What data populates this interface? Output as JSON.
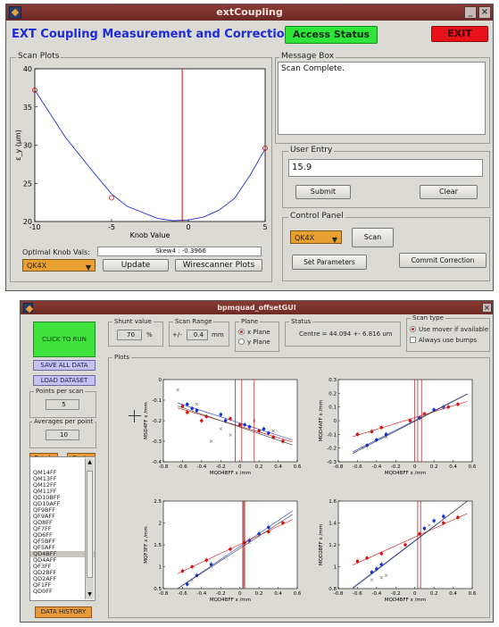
{
  "window1": {
    "title": "extCoupling",
    "header": "EXT Coupling Measurement and Correction",
    "access_status_label": "Access Status",
    "exit_label": "EXIT",
    "scan_plots_label": "Scan Plots",
    "message_box_label": "Message Box",
    "message_text": "Scan Complete.",
    "user_entry_label": "User Entry",
    "user_entry_value": "15.9",
    "submit_label": "Submit",
    "clear_label": "Clear",
    "control_panel_label": "Control Panel",
    "control_select_value": "QK4X",
    "scan_label": "Scan",
    "set_parameters_label": "Set Parameters",
    "commit_correction_label": "Commit Correction",
    "optimal_knob_label": "Optimal Knob Vals:",
    "optimal_knob_value": "Skew4 : -0.3966",
    "plot_select_value": "QK4X",
    "update_label": "Update",
    "wirescanner_label": "Wirescanner Plots",
    "colors": {
      "title_blue": "#1e2bd8",
      "access_green": "#2ee63a",
      "exit_red": "#e8121a",
      "select_orange": "#e8a030"
    }
  },
  "window2": {
    "title": "bpmquad_offsetGUI",
    "click_to_run": "CLICK TO RUN",
    "save_all_data": "SAVE ALL DATA",
    "load_dataset": "LOAD DATASET",
    "points_per_scan_label": "Points per scan",
    "points_per_scan_value": "5",
    "averages_label": "Averages per point",
    "averages_value": "10",
    "quads_label": "Quads",
    "sexts_label": "Sexts",
    "list_items": [
      "QM14FF",
      "QM13FF",
      "QM12FF",
      "QM11FF",
      "QD10BFF",
      "QD10AFF",
      "QF9BFF",
      "QF9AFF",
      "QD8FF",
      "QF7FF",
      "QD6FF",
      "QF5BFF",
      "QF5AFF",
      "QD4BFF",
      "QD4AFF",
      "QF3FF",
      "QD2BFF",
      "QD2AFF",
      "QF1FF",
      "QD0FF"
    ],
    "list_selected": "QD4BFF",
    "data_history": "DATA HISTORY",
    "shunt_label": "Shunt value",
    "shunt_value": "70",
    "shunt_unit": "%",
    "scan_range_label": "Scan Range",
    "scan_range_prefix": "+/-",
    "scan_range_value": "0.4",
    "scan_range_unit": "mm",
    "plane_label": "Plane",
    "plane_x": "x Plane",
    "plane_y": "y Plane",
    "status_label": "Status",
    "status_text": "Centre = 44.094 +- 6.816 um",
    "scan_type_label": "Scan type",
    "scan_type_mover": "Use mover if available",
    "scan_type_bumps": "Always use bumps",
    "plots_label": "Plots",
    "colors": {
      "run_green": "#3ee23a",
      "lavender": "#c6c2f0",
      "orange_btn": "#e89a3a"
    }
  },
  "chart_data": [
    {
      "type": "line",
      "title": "",
      "xlabel": "Knob Value",
      "ylabel": "ε_y (μm)",
      "xlim": [
        -10,
        5
      ],
      "ylim": [
        20,
        40
      ],
      "xticks": [
        -10,
        -5,
        0,
        5
      ],
      "yticks": [
        20,
        25,
        30,
        35,
        40
      ],
      "series": [
        {
          "style": "blue-curve",
          "x": [
            -10,
            -8,
            -6,
            -5,
            -4,
            -2,
            -1,
            0,
            1,
            2,
            3,
            4,
            5
          ],
          "y": [
            37.2,
            31.0,
            26.0,
            23.6,
            22.0,
            20.4,
            20.1,
            20.2,
            20.6,
            21.5,
            23.0,
            26.0,
            29.5
          ]
        },
        {
          "style": "red-circles",
          "x": [
            -10,
            -5,
            5
          ],
          "y": [
            37.2,
            23.1,
            29.6
          ]
        }
      ],
      "vline_x": -0.4
    },
    {
      "type": "scatter",
      "xlabel": "MQD4BFF x /mm",
      "ylabel": "MSD4FF x /mm",
      "xlim": [
        -0.8,
        0.6
      ],
      "ylim": [
        -0.4,
        0
      ],
      "xticks": [
        "-0.8",
        "-0.6",
        "-0.4",
        "-0.2",
        "0",
        "0.2",
        "0.4",
        "0.6"
      ],
      "yticks": [
        "0",
        "-0.1",
        "-0.2",
        "-0.3",
        "-0.4"
      ],
      "series": [
        {
          "style": "blue",
          "x": [
            -0.55,
            -0.5,
            -0.45,
            -0.2,
            -0.15,
            0.05,
            0.1,
            0.25,
            0.3
          ],
          "y": [
            -0.12,
            -0.14,
            -0.15,
            -0.17,
            -0.2,
            -0.22,
            -0.23,
            -0.24,
            -0.26
          ]
        },
        {
          "style": "red",
          "x": [
            -0.6,
            -0.55,
            -0.4,
            -0.35,
            -0.1,
            0.0,
            0.2,
            0.35,
            0.45
          ],
          "y": [
            -0.13,
            -0.16,
            -0.2,
            -0.18,
            -0.19,
            -0.22,
            -0.25,
            -0.28,
            -0.3
          ]
        },
        {
          "style": "grey",
          "x": [
            -0.65,
            -0.45,
            -0.3,
            -0.2,
            -0.1,
            0.15,
            0.35
          ],
          "y": [
            -0.05,
            -0.12,
            -0.3,
            -0.24,
            -0.27,
            -0.2,
            -0.25
          ]
        }
      ],
      "vlines_x": [
        -0.05,
        0.02,
        0.15
      ]
    },
    {
      "type": "scatter",
      "xlabel": "MQD4BFF x /mm",
      "ylabel": "MQD4AFF x /mm",
      "xlim": [
        -0.8,
        0.6
      ],
      "ylim": [
        -0.3,
        0.3
      ],
      "xticks": [
        "-0.8",
        "-0.6",
        "-0.4",
        "-0.2",
        "0",
        "0.2",
        "0.4",
        "0.6"
      ],
      "yticks": [
        "0.3",
        "0.2",
        "0.1",
        "0",
        "-0.1",
        "-0.2",
        "-0.3"
      ],
      "series": [
        {
          "style": "blue",
          "x": [
            -0.5,
            -0.4,
            -0.3,
            0.05,
            0.2,
            0.3
          ],
          "y": [
            -0.18,
            -0.14,
            -0.1,
            0.02,
            0.08,
            0.1
          ]
        },
        {
          "style": "red",
          "x": [
            -0.6,
            -0.45,
            -0.35,
            -0.05,
            0.1,
            0.35,
            0.45
          ],
          "y": [
            -0.1,
            -0.08,
            -0.05,
            0.0,
            0.05,
            0.1,
            0.12
          ]
        },
        {
          "style": "grey",
          "x": [
            -0.55,
            -0.3,
            0.1,
            0.3
          ],
          "y": [
            -0.2,
            -0.12,
            0.04,
            0.1
          ]
        }
      ],
      "vlines_x": [
        0.0,
        0.03,
        0.07
      ]
    },
    {
      "type": "scatter",
      "xlabel": "MQD4BFF x /mm",
      "ylabel": "MQF3FF x /mm",
      "xlim": [
        -0.8,
        0.6
      ],
      "ylim": [
        0.5,
        2.5
      ],
      "xticks": [
        "-0.8",
        "-0.6",
        "-0.4",
        "-0.2",
        "0",
        "0.2",
        "0.4",
        "0.6"
      ],
      "yticks": [
        "2.5",
        "2",
        "1.5",
        "1",
        "0.5"
      ],
      "series": [
        {
          "style": "blue",
          "x": [
            -0.55,
            -0.45,
            -0.3,
            0.1,
            0.2,
            0.3
          ],
          "y": [
            0.6,
            0.8,
            1.05,
            1.6,
            1.75,
            1.9
          ]
        },
        {
          "style": "red",
          "x": [
            -0.6,
            -0.5,
            -0.35,
            -0.1,
            0.05,
            0.3,
            0.45
          ],
          "y": [
            0.9,
            1.0,
            1.15,
            1.4,
            1.55,
            1.8,
            2.0
          ]
        },
        {
          "style": "grey",
          "x": [
            -0.5,
            -0.3,
            0.1,
            0.2
          ],
          "y": [
            0.7,
            1.0,
            1.55,
            1.7
          ]
        }
      ],
      "vlines_x": [
        0.03,
        0.04,
        0.05
      ]
    },
    {
      "type": "scatter",
      "xlabel": "MQD4BFF x /mm",
      "ylabel": "MQD2BFF x /mm",
      "xlim": [
        -0.8,
        0.6
      ],
      "ylim": [
        0.8,
        1.6
      ],
      "xticks": [
        "-0.8",
        "-0.6",
        "-0.4",
        "-0.2",
        "0",
        "0.2",
        "0.4",
        "0.6"
      ],
      "yticks": [
        "1.6",
        "1.4",
        "1.2",
        "1",
        "0.8"
      ],
      "series": [
        {
          "style": "blue",
          "x": [
            -0.45,
            -0.4,
            -0.35,
            0.1,
            0.2,
            0.3
          ],
          "y": [
            0.95,
            0.98,
            1.02,
            1.35,
            1.42,
            1.46
          ]
        },
        {
          "style": "red",
          "x": [
            -0.6,
            -0.5,
            -0.35,
            -0.1,
            0.05,
            0.3,
            0.45
          ],
          "y": [
            1.05,
            1.08,
            1.12,
            1.2,
            1.3,
            1.4,
            1.45
          ]
        },
        {
          "style": "grey",
          "x": [
            -0.45,
            -0.35,
            -0.3,
            0.15
          ],
          "y": [
            0.88,
            0.9,
            0.92,
            1.38
          ]
        }
      ],
      "vlines_x": [
        0.03,
        0.06
      ]
    }
  ]
}
